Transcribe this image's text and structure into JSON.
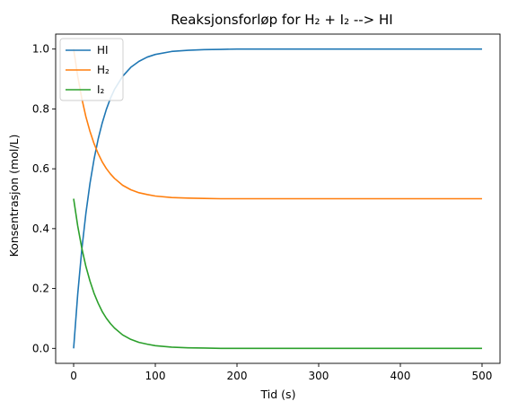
{
  "chart_data": {
    "type": "line",
    "title": "Reaksjonsforløp for H₂ + I₂ --> HI",
    "xlabel": "Tid (s)",
    "ylabel": "Konsentrasjon (mol/L)",
    "xlim": [
      -22,
      522
    ],
    "ylim": [
      -0.05,
      1.05
    ],
    "xticks": [
      0,
      100,
      200,
      300,
      400,
      500
    ],
    "xtick_labels": [
      "0",
      "100",
      "200",
      "300",
      "400",
      "500"
    ],
    "yticks": [
      0.0,
      0.2,
      0.4,
      0.6,
      0.8,
      1.0
    ],
    "ytick_labels": [
      "0.0",
      "0.2",
      "0.4",
      "0.6",
      "0.8",
      "1.0"
    ],
    "grid": false,
    "legend_position": "top-left",
    "series": [
      {
        "name": "HI",
        "color": "#1f77b4",
        "x": [
          0,
          5,
          10,
          15,
          20,
          25,
          30,
          35,
          40,
          45,
          50,
          60,
          70,
          80,
          90,
          100,
          120,
          140,
          160,
          180,
          200,
          250,
          300,
          350,
          400,
          450,
          500
        ],
        "y": [
          0.0,
          0.181,
          0.33,
          0.451,
          0.551,
          0.632,
          0.699,
          0.753,
          0.798,
          0.835,
          0.865,
          0.909,
          0.939,
          0.959,
          0.973,
          0.982,
          0.992,
          0.996,
          0.998,
          0.999,
          1.0,
          1.0,
          1.0,
          1.0,
          1.0,
          1.0,
          1.0
        ]
      },
      {
        "name": "H₂",
        "color": "#ff7f0e",
        "x": [
          0,
          5,
          10,
          15,
          20,
          25,
          30,
          35,
          40,
          45,
          50,
          60,
          70,
          80,
          90,
          100,
          120,
          140,
          160,
          180,
          200,
          250,
          300,
          350,
          400,
          450,
          500
        ],
        "y": [
          1.0,
          0.909,
          0.835,
          0.774,
          0.725,
          0.684,
          0.651,
          0.623,
          0.601,
          0.583,
          0.568,
          0.545,
          0.53,
          0.52,
          0.514,
          0.509,
          0.504,
          0.502,
          0.501,
          0.5,
          0.5,
          0.5,
          0.5,
          0.5,
          0.5,
          0.5,
          0.5
        ]
      },
      {
        "name": "I₂",
        "color": "#2ca02c",
        "x": [
          0,
          5,
          10,
          15,
          20,
          25,
          30,
          35,
          40,
          45,
          50,
          60,
          70,
          80,
          90,
          100,
          120,
          140,
          160,
          180,
          200,
          250,
          300,
          350,
          400,
          450,
          500
        ],
        "y": [
          0.5,
          0.409,
          0.335,
          0.274,
          0.225,
          0.184,
          0.151,
          0.123,
          0.101,
          0.083,
          0.068,
          0.045,
          0.03,
          0.02,
          0.014,
          0.009,
          0.004,
          0.002,
          0.001,
          0.0,
          0.0,
          0.0,
          0.0,
          0.0,
          0.0,
          0.0,
          0.0
        ]
      }
    ]
  }
}
